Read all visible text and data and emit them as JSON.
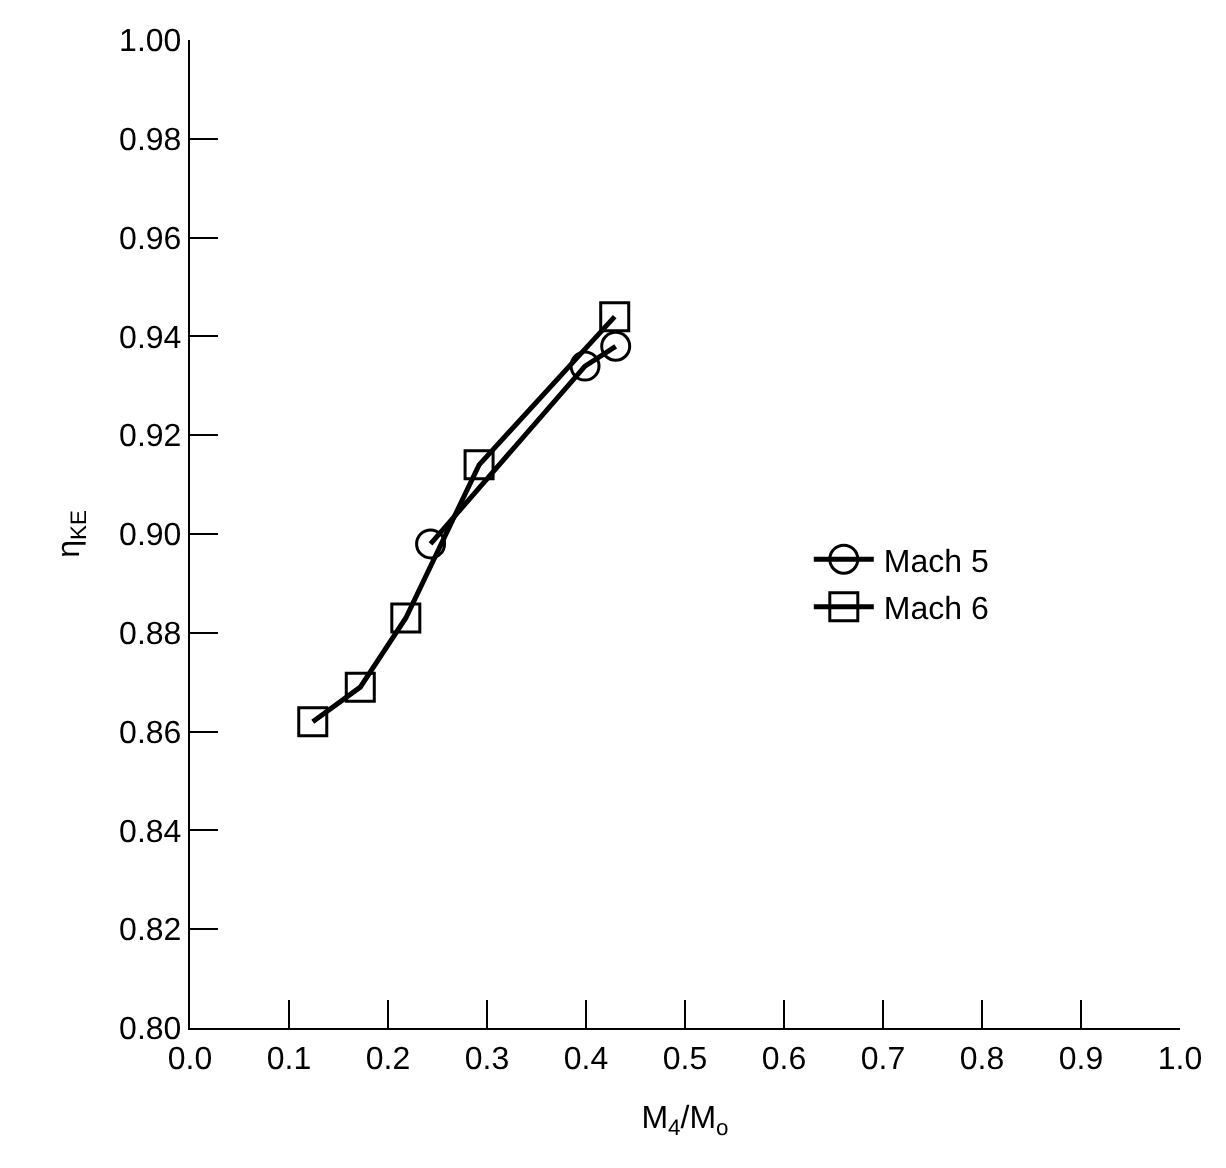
{
  "chart_data": {
    "type": "line",
    "xlabel": "M$_{4}$/M$_{o}$",
    "ylabel": "η$_{KE}$",
    "xlim": [
      0,
      1
    ],
    "xticks": [
      "0.0",
      0.1,
      0.2,
      0.3,
      0.4,
      0.5,
      0.6,
      0.7,
      0.8,
      0.9,
      "1.0"
    ],
    "ylim": [
      0.8,
      1
    ],
    "yticks": [
      "0.80",
      0.82,
      0.84,
      0.86,
      0.88,
      "0.90",
      0.92,
      0.94,
      0.96,
      0.98,
      "1.00"
    ],
    "legend": "right",
    "line_style": "solid",
    "series": [
      {
        "name": "Mach 5",
        "color": "#000000",
        "marker": "circle",
        "x": [
          0.243,
          0.399,
          0.43
        ],
        "values": [
          0.898,
          0.934,
          0.938
        ]
      },
      {
        "name": "Mach 6",
        "color": "#000000",
        "marker": "square",
        "x": [
          0.124,
          0.172,
          0.218,
          0.292,
          0.429
        ],
        "values": [
          0.862,
          0.869,
          0.883,
          0.914,
          0.944
        ]
      }
    ]
  }
}
